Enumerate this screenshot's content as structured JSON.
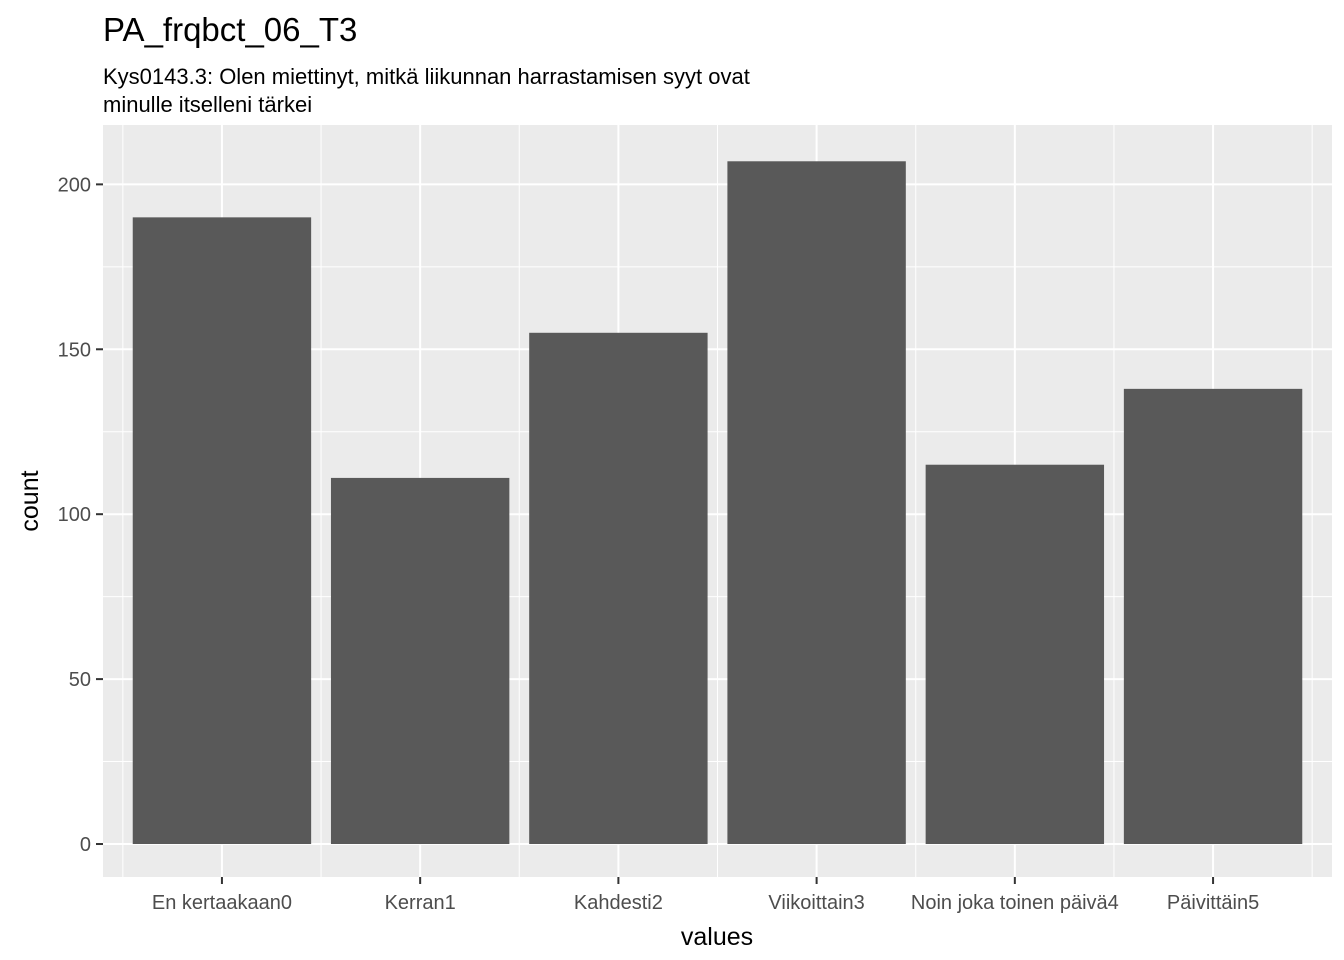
{
  "chart_data": {
    "type": "bar",
    "title": "PA_frqbct_06_T3",
    "subtitle": [
      "Kys0143.3: Olen miettinyt, mitkä liikunnan harrastamisen syyt ovat",
      "minulle itselleni tärkei"
    ],
    "xlabel": "values",
    "ylabel": "count",
    "categories": [
      "En kertaakaan0",
      "Kerran1",
      "Kahdesti2",
      "Viikoittain3",
      "Noin joka toinen päivä4",
      "Päivittäin5"
    ],
    "values": [
      190,
      111,
      155,
      207,
      115,
      138
    ],
    "ylim": [
      -10,
      218
    ],
    "yticks": [
      0,
      50,
      100,
      150,
      200
    ],
    "grid": true,
    "legend": "none",
    "colors": {
      "panel": "#ebebeb",
      "grid_major": "#ffffff",
      "bar": "#595959",
      "tick": "#333333"
    }
  }
}
